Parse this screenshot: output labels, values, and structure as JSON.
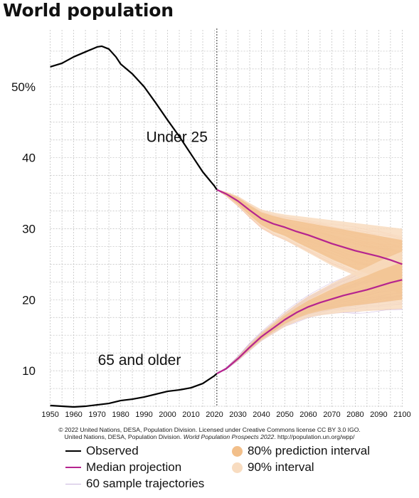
{
  "title": "World population",
  "colors": {
    "observed": "#000000",
    "median": "#b5248f",
    "pi80": "#f2bf8a",
    "pi90": "#f8dcc0",
    "samples_upper": "#f0a48e",
    "samples_lower": "#b48fd0",
    "grid": "#bdbdbd",
    "divider": "#555555"
  },
  "chart_data": {
    "type": "line",
    "title": "World population",
    "xlabel": "",
    "ylabel": "",
    "xlim": [
      1948,
      2102
    ],
    "ylim": [
      3.5,
      58
    ],
    "x_ticks": [
      1950,
      1960,
      1970,
      1980,
      1990,
      2000,
      2010,
      2020,
      2030,
      2040,
      2050,
      2060,
      2070,
      2080,
      2090,
      2100
    ],
    "x_tick_labels": [
      "1950",
      "1960",
      "1970",
      "1980",
      "1990",
      "2000",
      "2010",
      "2020",
      "2030",
      "2040",
      "2050",
      "2060",
      "2070",
      "2080",
      "2090",
      "2100"
    ],
    "y_ticks": [
      10,
      20,
      30,
      40,
      50
    ],
    "y_tick_labels": [
      "10",
      "20",
      "30",
      "40",
      "50%"
    ],
    "grid": true,
    "divider_year": 2021,
    "annotations": [
      {
        "text": "Under 25",
        "x": 2004,
        "y": 42.2
      },
      {
        "text": "65 and older",
        "x": 1988,
        "y": 10.8
      }
    ],
    "series": [
      {
        "name": "Under 25",
        "observed": {
          "x": [
            1950,
            1955,
            1960,
            1965,
            1970,
            1972,
            1975,
            1978,
            1980,
            1985,
            1990,
            1995,
            2000,
            2005,
            2010,
            2015,
            2020,
            2021
          ],
          "y": [
            52.8,
            53.3,
            54.2,
            54.9,
            55.6,
            55.7,
            55.3,
            54.2,
            53.2,
            51.8,
            50.0,
            47.7,
            45.3,
            43.0,
            40.5,
            38.0,
            36.0,
            35.5
          ]
        },
        "median": {
          "x": [
            2021,
            2025,
            2030,
            2035,
            2040,
            2045,
            2050,
            2055,
            2060,
            2065,
            2070,
            2075,
            2080,
            2085,
            2090,
            2095,
            2100
          ],
          "y": [
            35.5,
            34.9,
            33.9,
            32.6,
            31.4,
            30.7,
            30.2,
            29.6,
            29.1,
            28.5,
            27.9,
            27.4,
            26.9,
            26.5,
            26.1,
            25.6,
            25.0
          ]
        },
        "pi80_low": [
          35.5,
          34.7,
          33.4,
          31.9,
          30.5,
          29.6,
          29.0,
          28.1,
          27.3,
          26.5,
          25.7,
          25.0,
          24.3,
          23.7,
          23.1,
          22.4,
          21.8
        ],
        "pi80_high": [
          35.5,
          35.1,
          34.4,
          33.3,
          32.3,
          31.8,
          31.4,
          31.1,
          30.8,
          30.5,
          30.2,
          29.9,
          29.6,
          29.3,
          29.0,
          28.7,
          28.4
        ],
        "pi90_low": [
          35.5,
          34.6,
          33.2,
          31.6,
          30.1,
          29.1,
          28.4,
          27.5,
          26.6,
          25.7,
          24.8,
          24.1,
          23.4,
          22.7,
          22.1,
          21.4,
          20.8
        ],
        "pi90_high": [
          35.5,
          35.2,
          34.6,
          33.6,
          32.7,
          32.3,
          32.0,
          31.8,
          31.6,
          31.4,
          31.2,
          31.0,
          30.8,
          30.6,
          30.4,
          30.2,
          30.0
        ]
      },
      {
        "name": "65 and older",
        "observed": {
          "x": [
            1950,
            1955,
            1960,
            1965,
            1970,
            1975,
            1980,
            1985,
            1990,
            1995,
            2000,
            2005,
            2010,
            2015,
            2020,
            2021
          ],
          "y": [
            5.1,
            5.0,
            4.9,
            5.0,
            5.2,
            5.4,
            5.8,
            6.0,
            6.3,
            6.7,
            7.1,
            7.3,
            7.6,
            8.2,
            9.3,
            9.6
          ]
        },
        "median": {
          "x": [
            2021,
            2025,
            2030,
            2035,
            2040,
            2045,
            2050,
            2055,
            2060,
            2065,
            2070,
            2075,
            2080,
            2085,
            2090,
            2095,
            2100
          ],
          "y": [
            9.6,
            10.3,
            11.7,
            13.3,
            14.8,
            16.0,
            17.2,
            18.2,
            19.0,
            19.6,
            20.1,
            20.6,
            21.0,
            21.4,
            21.9,
            22.4,
            22.8
          ]
        },
        "pi80_low": [
          9.6,
          10.2,
          11.5,
          13.0,
          14.4,
          15.5,
          16.6,
          17.4,
          18.0,
          18.4,
          18.7,
          19.0,
          19.2,
          19.4,
          19.6,
          19.8,
          20.0
        ],
        "pi80_high": [
          9.6,
          10.4,
          11.9,
          13.6,
          15.2,
          16.5,
          17.8,
          18.9,
          19.9,
          20.7,
          21.5,
          22.2,
          22.8,
          23.4,
          24.1,
          24.7,
          25.3
        ],
        "pi90_low": [
          9.6,
          10.2,
          11.4,
          12.8,
          14.2,
          15.2,
          16.2,
          16.9,
          17.5,
          17.8,
          18.0,
          18.2,
          18.3,
          18.4,
          18.5,
          18.6,
          18.7
        ],
        "pi90_high": [
          9.6,
          10.4,
          12.0,
          13.8,
          15.4,
          16.8,
          18.2,
          19.4,
          20.5,
          21.4,
          22.3,
          23.1,
          23.9,
          24.6,
          25.4,
          26.1,
          26.8
        ]
      }
    ]
  },
  "credit": {
    "line1": "© 2022 United Nations, DESA, Population Division. Licensed under Creative Commons license CC BY 3.0 IGO.",
    "line2_pre": "United Nations, DESA, Population Division.",
    "line2_italic": "World Population Prospects 2022",
    "line2_post": ". http://population.un.org/wpp/"
  },
  "legend": {
    "observed": "Observed",
    "median": "Median projection",
    "samples": "60 sample trajectories",
    "pi80": "80% prediction interval",
    "pi90": "90% interval"
  }
}
